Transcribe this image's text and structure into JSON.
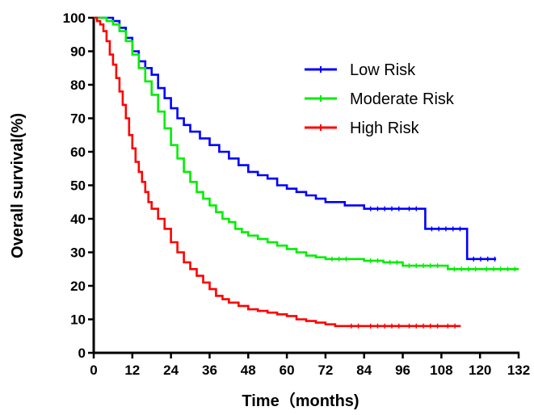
{
  "chart_data": {
    "type": "line",
    "title": "",
    "xlabel": "Time（months)",
    "ylabel": "Overall survival(%)",
    "xlim": [
      0,
      132
    ],
    "ylim": [
      0,
      100
    ],
    "x_ticks": [
      0,
      12,
      24,
      36,
      48,
      60,
      72,
      84,
      96,
      108,
      120,
      132
    ],
    "y_ticks": [
      0,
      10,
      20,
      30,
      40,
      50,
      60,
      70,
      80,
      90,
      100
    ],
    "grid": false,
    "legend_position": "top-right",
    "step": true,
    "series": [
      {
        "name": "Low Risk",
        "color": "#0000ff",
        "points": [
          [
            0,
            100
          ],
          [
            4,
            100
          ],
          [
            6,
            99
          ],
          [
            8,
            97
          ],
          [
            10,
            94
          ],
          [
            12,
            90
          ],
          [
            14,
            87
          ],
          [
            16,
            85
          ],
          [
            18,
            83
          ],
          [
            20,
            79
          ],
          [
            22,
            76
          ],
          [
            24,
            73
          ],
          [
            26,
            70
          ],
          [
            28,
            68
          ],
          [
            30,
            66
          ],
          [
            33,
            64
          ],
          [
            36,
            62
          ],
          [
            39,
            60
          ],
          [
            42,
            58
          ],
          [
            45,
            56
          ],
          [
            48,
            54
          ],
          [
            51,
            53
          ],
          [
            54,
            52
          ],
          [
            57,
            50
          ],
          [
            60,
            49
          ],
          [
            63,
            48
          ],
          [
            66,
            47
          ],
          [
            69,
            46
          ],
          [
            72,
            45
          ],
          [
            75,
            45
          ],
          [
            78,
            44
          ],
          [
            81,
            44
          ],
          [
            84,
            43
          ],
          [
            96,
            43
          ],
          [
            102,
            43
          ],
          [
            103,
            37
          ],
          [
            114,
            37
          ],
          [
            116,
            28
          ],
          [
            125,
            28
          ]
        ]
      },
      {
        "name": "Moderate Risk",
        "color": "#00ee00",
        "points": [
          [
            0,
            100
          ],
          [
            2,
            100
          ],
          [
            4,
            99
          ],
          [
            6,
            98
          ],
          [
            8,
            96
          ],
          [
            10,
            93
          ],
          [
            12,
            89
          ],
          [
            14,
            85
          ],
          [
            16,
            81
          ],
          [
            18,
            77
          ],
          [
            20,
            72
          ],
          [
            22,
            67
          ],
          [
            24,
            62
          ],
          [
            26,
            58
          ],
          [
            28,
            54
          ],
          [
            30,
            51
          ],
          [
            32,
            48
          ],
          [
            34,
            46
          ],
          [
            36,
            44
          ],
          [
            38,
            42
          ],
          [
            40,
            40
          ],
          [
            42,
            39
          ],
          [
            44,
            37
          ],
          [
            46,
            36
          ],
          [
            48,
            35
          ],
          [
            51,
            34
          ],
          [
            54,
            33
          ],
          [
            57,
            32
          ],
          [
            60,
            31
          ],
          [
            63,
            30
          ],
          [
            66,
            29
          ],
          [
            69,
            28.5
          ],
          [
            72,
            28
          ],
          [
            80,
            28
          ],
          [
            84,
            27.5
          ],
          [
            90,
            27
          ],
          [
            96,
            26
          ],
          [
            108,
            26
          ],
          [
            110,
            25
          ],
          [
            120,
            25
          ],
          [
            132,
            25
          ]
        ]
      },
      {
        "name": "High Risk",
        "color": "#ff0000",
        "points": [
          [
            0,
            100
          ],
          [
            1,
            99
          ],
          [
            2,
            98
          ],
          [
            3,
            96
          ],
          [
            4,
            93
          ],
          [
            5,
            89
          ],
          [
            6,
            86
          ],
          [
            7,
            82
          ],
          [
            8,
            78
          ],
          [
            9,
            74
          ],
          [
            10,
            70
          ],
          [
            11,
            65
          ],
          [
            12,
            61
          ],
          [
            13,
            57
          ],
          [
            14,
            54
          ],
          [
            15,
            51
          ],
          [
            16,
            48
          ],
          [
            17,
            45
          ],
          [
            18,
            43
          ],
          [
            20,
            40
          ],
          [
            22,
            37
          ],
          [
            24,
            33
          ],
          [
            26,
            30
          ],
          [
            28,
            27
          ],
          [
            30,
            25
          ],
          [
            32,
            23
          ],
          [
            34,
            21
          ],
          [
            36,
            19
          ],
          [
            38,
            17
          ],
          [
            40,
            16
          ],
          [
            42,
            15
          ],
          [
            45,
            14
          ],
          [
            48,
            13
          ],
          [
            51,
            12.5
          ],
          [
            54,
            12
          ],
          [
            57,
            11.5
          ],
          [
            60,
            11
          ],
          [
            63,
            10
          ],
          [
            66,
            9.5
          ],
          [
            69,
            9
          ],
          [
            72,
            8.5
          ],
          [
            75,
            8
          ],
          [
            78,
            8
          ],
          [
            84,
            8
          ],
          [
            96,
            8
          ],
          [
            108,
            8
          ],
          [
            114,
            8
          ]
        ]
      }
    ]
  }
}
